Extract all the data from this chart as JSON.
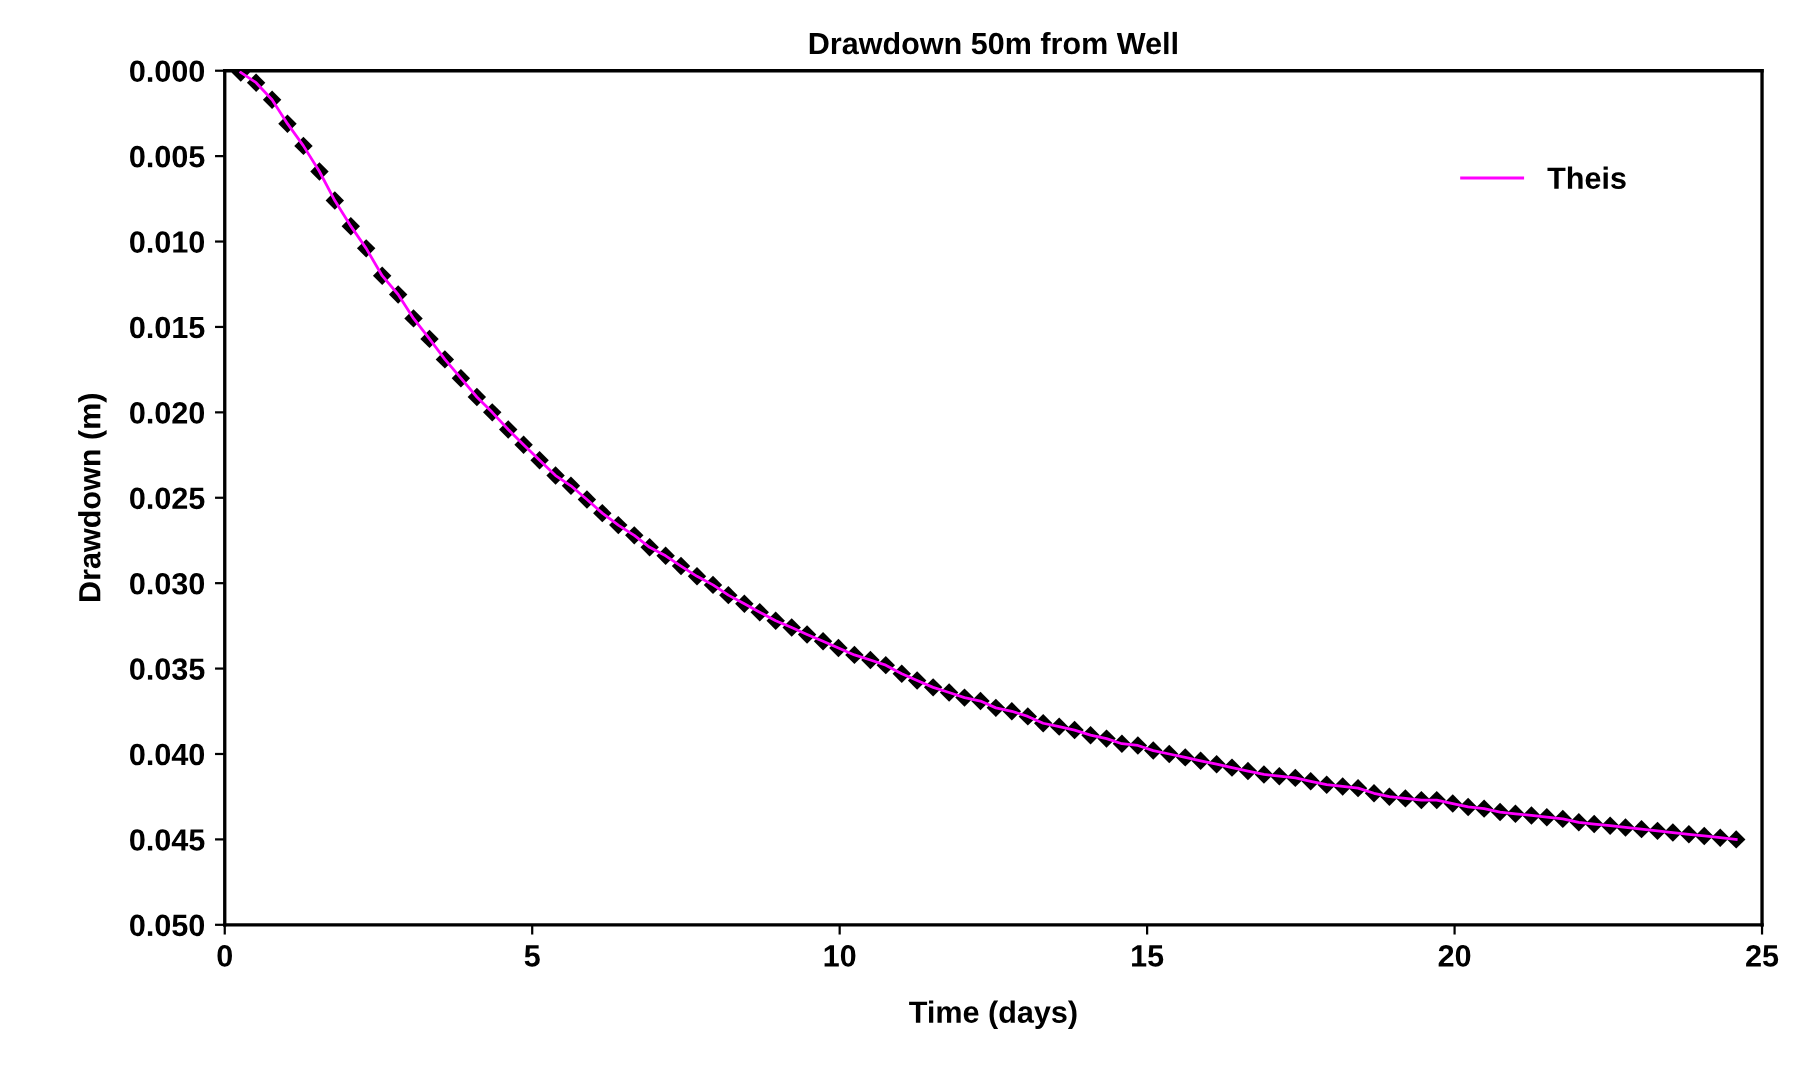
{
  "chart_data": {
    "type": "line",
    "title": "Drawdown 50m from Well",
    "xlabel": "Time (days)",
    "ylabel": "Drawdown (m)",
    "x": [
      0.26,
      0.51,
      0.77,
      1.02,
      1.28,
      1.54,
      1.79,
      2.05,
      2.3,
      2.56,
      2.82,
      3.07,
      3.33,
      3.58,
      3.84,
      4.1,
      4.35,
      4.61,
      4.86,
      5.12,
      5.38,
      5.63,
      5.89,
      6.14,
      6.4,
      6.66,
      6.91,
      7.17,
      7.42,
      7.68,
      7.94,
      8.19,
      8.45,
      8.7,
      8.96,
      9.22,
      9.47,
      9.73,
      9.98,
      10.24,
      10.5,
      10.75,
      11.01,
      11.26,
      11.52,
      11.78,
      12.03,
      12.29,
      12.54,
      12.8,
      13.06,
      13.31,
      13.57,
      13.82,
      14.08,
      14.34,
      14.59,
      14.85,
      15.1,
      15.36,
      15.62,
      15.87,
      16.13,
      16.38,
      16.64,
      16.9,
      17.15,
      17.41,
      17.66,
      17.92,
      18.18,
      18.43,
      18.69,
      18.94,
      19.2,
      19.46,
      19.71,
      19.97,
      20.22,
      20.48,
      20.74,
      20.99,
      21.25,
      21.5,
      21.76,
      22.02,
      22.27,
      22.53,
      22.78,
      23.04,
      23.3,
      23.55,
      23.81,
      24.06,
      24.32,
      24.58
    ],
    "series": [
      {
        "name": "Theis",
        "type": "line",
        "color": "#ff00ff",
        "line_style": "solid",
        "values": [
          0.0001,
          0.0007,
          0.0017,
          0.0031,
          0.0044,
          0.0059,
          0.0076,
          0.0091,
          0.0104,
          0.012,
          0.0131,
          0.0145,
          0.0157,
          0.0169,
          0.018,
          0.0191,
          0.02,
          0.021,
          0.0219,
          0.0228,
          0.0237,
          0.0243,
          0.0251,
          0.0259,
          0.0266,
          0.0272,
          0.0279,
          0.0284,
          0.029,
          0.0296,
          0.0301,
          0.0307,
          0.0312,
          0.0317,
          0.0322,
          0.0326,
          0.033,
          0.0334,
          0.0338,
          0.0342,
          0.0345,
          0.0348,
          0.0353,
          0.0357,
          0.0361,
          0.0364,
          0.0367,
          0.0369,
          0.0373,
          0.0375,
          0.0378,
          0.0382,
          0.0384,
          0.0386,
          0.0389,
          0.0391,
          0.0394,
          0.0395,
          0.0398,
          0.04,
          0.0402,
          0.0404,
          0.0406,
          0.0408,
          0.041,
          0.0412,
          0.0413,
          0.0414,
          0.0416,
          0.0418,
          0.0419,
          0.042,
          0.0423,
          0.0425,
          0.0426,
          0.0427,
          0.0427,
          0.0429,
          0.0431,
          0.0432,
          0.0434,
          0.0435,
          0.0436,
          0.0437,
          0.0438,
          0.044,
          0.0441,
          0.0442,
          0.0443,
          0.0444,
          0.0445,
          0.0446,
          0.0447,
          0.0448,
          0.0449,
          0.045
        ]
      },
      {
        "type": "scatter",
        "color": "#000000",
        "marker": "diamond",
        "values": [
          0.0001,
          0.0007,
          0.0017,
          0.0031,
          0.0044,
          0.0059,
          0.0076,
          0.0091,
          0.0104,
          0.012,
          0.0131,
          0.0145,
          0.0157,
          0.0169,
          0.018,
          0.0191,
          0.02,
          0.021,
          0.0219,
          0.0228,
          0.0237,
          0.0243,
          0.0251,
          0.0259,
          0.0266,
          0.0272,
          0.0279,
          0.0284,
          0.029,
          0.0296,
          0.0301,
          0.0307,
          0.0312,
          0.0317,
          0.0322,
          0.0326,
          0.033,
          0.0334,
          0.0338,
          0.0342,
          0.0345,
          0.0348,
          0.0353,
          0.0357,
          0.0361,
          0.0364,
          0.0367,
          0.0369,
          0.0373,
          0.0375,
          0.0378,
          0.0382,
          0.0384,
          0.0386,
          0.0389,
          0.0391,
          0.0394,
          0.0395,
          0.0398,
          0.04,
          0.0402,
          0.0404,
          0.0406,
          0.0408,
          0.041,
          0.0412,
          0.0413,
          0.0414,
          0.0416,
          0.0418,
          0.0419,
          0.042,
          0.0423,
          0.0425,
          0.0426,
          0.0427,
          0.0427,
          0.0429,
          0.0431,
          0.0432,
          0.0434,
          0.0435,
          0.0436,
          0.0437,
          0.0438,
          0.044,
          0.0441,
          0.0442,
          0.0443,
          0.0444,
          0.0445,
          0.0446,
          0.0447,
          0.0448,
          0.0449,
          0.045
        ]
      }
    ],
    "xlim": [
      0,
      25
    ],
    "xticks": [
      0,
      5,
      10,
      15,
      20,
      25
    ],
    "ylim": [
      0.05,
      0
    ],
    "yticks": [
      {
        "value": 0,
        "label": "0.000"
      },
      {
        "value": 0.005,
        "label": "0.005"
      },
      {
        "value": 0.01,
        "label": "0.010"
      },
      {
        "value": 0.015,
        "label": "0.015"
      },
      {
        "value": 0.02,
        "label": "0.020"
      },
      {
        "value": 0.025,
        "label": "0.025"
      },
      {
        "value": 0.03,
        "label": "0.030"
      },
      {
        "value": 0.035,
        "label": "0.035"
      },
      {
        "value": 0.04,
        "label": "0.040"
      },
      {
        "value": 0.045,
        "label": "0.045"
      },
      {
        "value": 0.05,
        "label": "0.050"
      }
    ],
    "legend": "top right"
  }
}
